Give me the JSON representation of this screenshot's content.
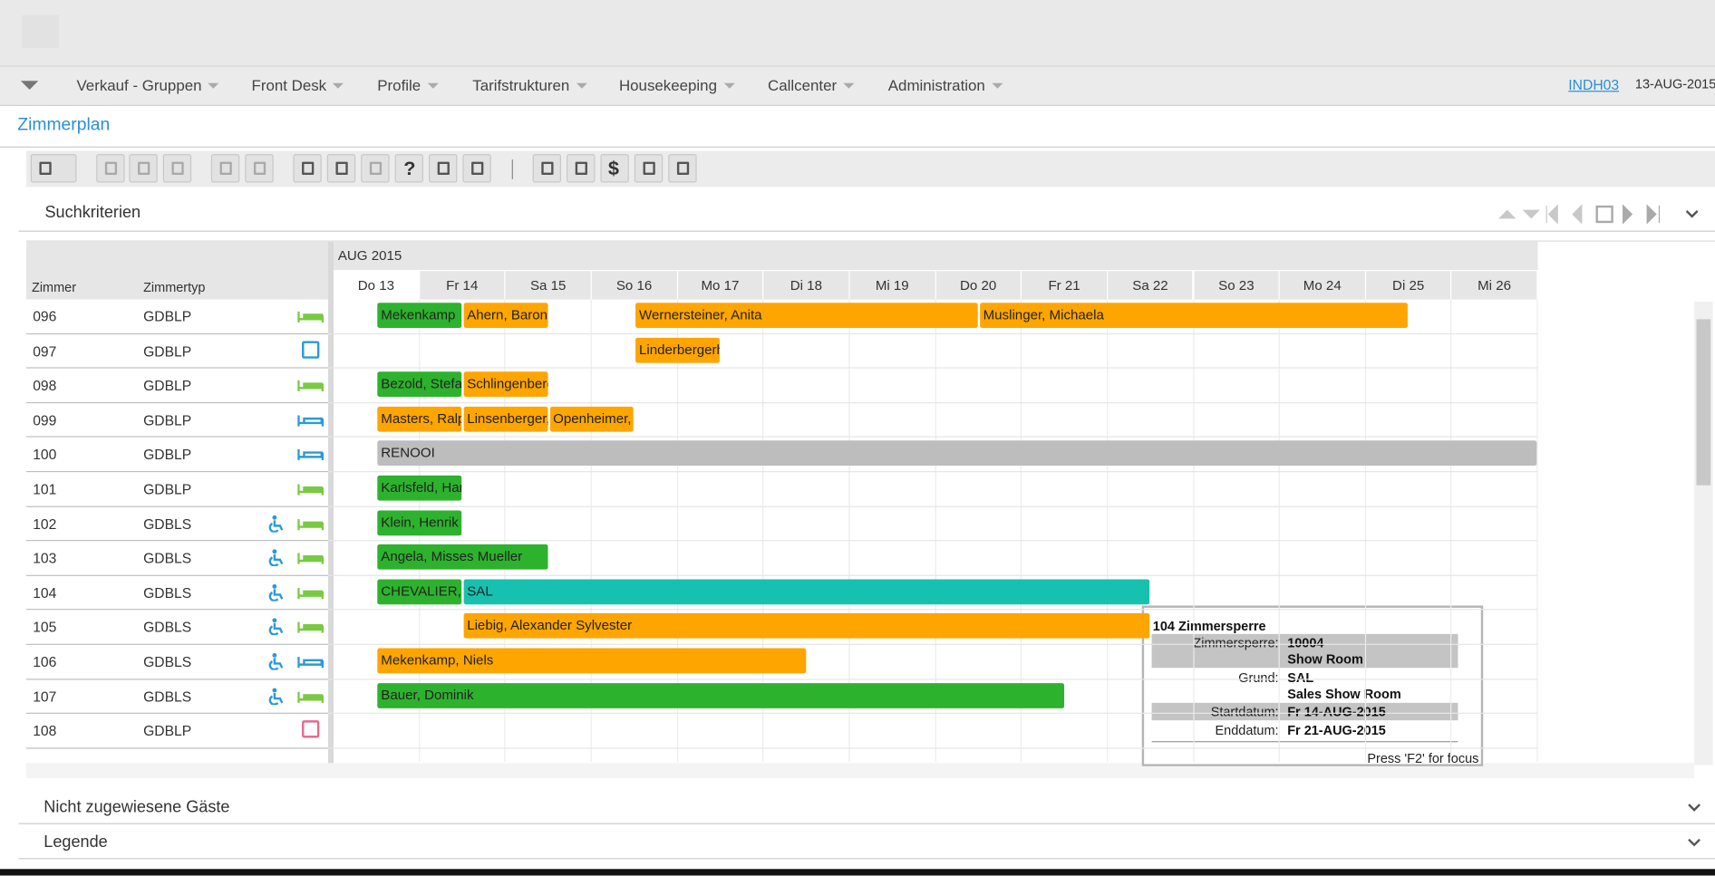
{
  "menu": {
    "items": [
      "Verkauf - Gruppen",
      "Front Desk",
      "Profile",
      "Tarifstrukturen",
      "Housekeeping",
      "Callcenter",
      "Administration"
    ],
    "user": "INDH03",
    "date": "13-AUG-2015"
  },
  "page_title": "Zimmerplan",
  "toolbar": {
    "help": "?",
    "currency": "$"
  },
  "search": {
    "title": "Suchkriterien"
  },
  "grid": {
    "month": "AUG 2015",
    "col_room": "Zimmer",
    "col_type": "Zimmertyp",
    "days": [
      "Do 13",
      "Fr 14",
      "Sa 15",
      "So 16",
      "Mo 17",
      "Di 18",
      "Mi 19",
      "Do 20",
      "Fr 21",
      "Sa 22",
      "So 23",
      "Mo 24",
      "Di 25",
      "Mi 26"
    ],
    "rooms": [
      {
        "number": "096",
        "type": "GDBLP",
        "bookings": [
          "Mekenkamp",
          "Ahern, Baron",
          "Wernersteiner, Anita",
          "Muslinger, Michaela"
        ]
      },
      {
        "number": "097",
        "type": "GDBLP",
        "bookings": [
          "Linderbergerh"
        ]
      },
      {
        "number": "098",
        "type": "GDBLP",
        "bookings": [
          "Bezold, Stefa",
          "Schlingenberg"
        ]
      },
      {
        "number": "099",
        "type": "GDBLP",
        "bookings": [
          "Masters, Ralp",
          "Linsenberger,",
          "Openheimer,"
        ]
      },
      {
        "number": "100",
        "type": "GDBLP",
        "bookings": [
          "RENOOI"
        ]
      },
      {
        "number": "101",
        "type": "GDBLP",
        "bookings": [
          "Karlsfeld, Har"
        ]
      },
      {
        "number": "102",
        "type": "GDBLS",
        "bookings": [
          "Klein, Henrik"
        ]
      },
      {
        "number": "103",
        "type": "GDBLS",
        "bookings": [
          "Angela, Misses Mueller"
        ]
      },
      {
        "number": "104",
        "type": "GDBLS",
        "bookings": [
          "CHEVALIER,",
          "SAL"
        ]
      },
      {
        "number": "105",
        "type": "GDBLS",
        "bookings": [
          "Liebig, Alexander Sylvester"
        ]
      },
      {
        "number": "106",
        "type": "GDBLS",
        "bookings": [
          "Mekenkamp, Niels"
        ]
      },
      {
        "number": "107",
        "type": "GDBLS",
        "bookings": [
          "Bauer, Dominik"
        ]
      },
      {
        "number": "108",
        "type": "GDBLP",
        "bookings": []
      }
    ]
  },
  "tooltip": {
    "title": "104  Zimmersperre",
    "rows": [
      {
        "label": "Zimmersperre:",
        "value": [
          "10004",
          "Show Room"
        ]
      },
      {
        "label": "Grund:",
        "value": [
          "SAL",
          "Sales Show Room"
        ]
      },
      {
        "label": "Startdatum:",
        "value": [
          "Fr 14-AUG-2015"
        ]
      },
      {
        "label": "Enddatum:",
        "value": [
          "Fr 21-AUG-2015"
        ]
      }
    ],
    "hint": "Press 'F2' for focus"
  },
  "sections": [
    "Nicht zugewiesene Gäste",
    "Legende"
  ]
}
